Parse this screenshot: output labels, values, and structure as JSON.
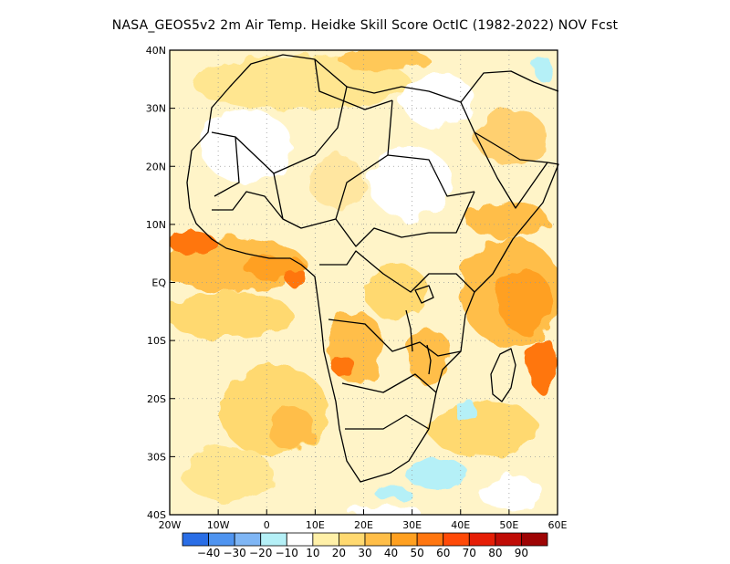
{
  "title": "NASA_GEOS5v2  2m Air Temp. Heidke Skill Score OctIC (1982-2022) NOV Fcst",
  "lat_labels": [
    "40N",
    "30N",
    "20N",
    "10N",
    "EQ",
    "10S",
    "20S",
    "30S",
    "40S"
  ],
  "lon_labels": [
    "20W",
    "10W",
    "0",
    "10E",
    "20E",
    "30E",
    "40E",
    "50E",
    "60E"
  ],
  "colorbar": {
    "colors": [
      "#2a6ee6",
      "#4f94f0",
      "#7fb6f5",
      "#b5f0f7",
      "#ffffff",
      "#fff0a8",
      "#ffd970",
      "#ffbe48",
      "#ffa020",
      "#ff7610",
      "#ff4a08",
      "#e61e06",
      "#c00c06",
      "#9e0404"
    ],
    "labels": [
      "-40",
      "-30",
      "-20",
      "-10",
      "10",
      "20",
      "30",
      "40",
      "50",
      "60",
      "70",
      "80",
      "90"
    ]
  }
}
